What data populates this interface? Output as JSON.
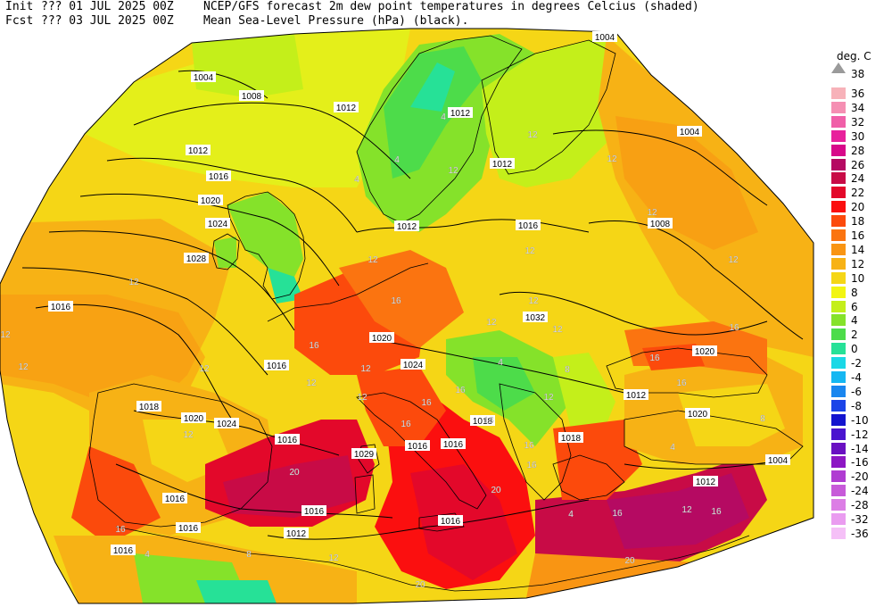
{
  "header": {
    "init_label": "Init",
    "init_date": "??? 01 JUL 2025 00Z",
    "fcst_label": "Fcst",
    "fcst_date": "??? 03 JUL 2025 00Z",
    "line1": "NCEP/GFS forecast 2m dew point temperatures in degrees Celcius (shaded)",
    "line2": "Mean Sea-Level Pressure (hPa) (black)."
  },
  "legend": {
    "title": "deg. C",
    "top_value": "38",
    "entries": [
      {
        "label": "36",
        "color": "#f7b2b9"
      },
      {
        "label": "34",
        "color": "#f58fb3"
      },
      {
        "label": "32",
        "color": "#f05fa8"
      },
      {
        "label": "30",
        "color": "#e8219c"
      },
      {
        "label": "28",
        "color": "#d8088a"
      },
      {
        "label": "26",
        "color": "#b50a62"
      },
      {
        "label": "24",
        "color": "#c80b46"
      },
      {
        "label": "22",
        "color": "#e3082a"
      },
      {
        "label": "20",
        "color": "#fb0f0f"
      },
      {
        "label": "18",
        "color": "#fc4a0c"
      },
      {
        "label": "16",
        "color": "#fb7410"
      },
      {
        "label": "14",
        "color": "#f99513"
      },
      {
        "label": "12",
        "color": "#f7b215"
      },
      {
        "label": "10",
        "color": "#f5d616"
      },
      {
        "label": "8",
        "color": "#f2f512"
      },
      {
        "label": "6",
        "color": "#c4ef1a"
      },
      {
        "label": "4",
        "color": "#85e22a"
      },
      {
        "label": "2",
        "color": "#4ddc4a"
      },
      {
        "label": "0",
        "color": "#26e197"
      },
      {
        "label": "-2",
        "color": "#1ad8e6"
      },
      {
        "label": "-4",
        "color": "#16b7f2"
      },
      {
        "label": "-6",
        "color": "#1a86ef"
      },
      {
        "label": "-8",
        "color": "#1b44e8"
      },
      {
        "label": "-10",
        "color": "#1414cf"
      },
      {
        "label": "-12",
        "color": "#4a14cf"
      },
      {
        "label": "-14",
        "color": "#6a10c2"
      },
      {
        "label": "-16",
        "color": "#8d16c4"
      },
      {
        "label": "-20",
        "color": "#b03cd2"
      },
      {
        "label": "-24",
        "color": "#c75ad9"
      },
      {
        "label": "-28",
        "color": "#dc7ee5"
      },
      {
        "label": "-32",
        "color": "#ea9cf0"
      },
      {
        "label": "-36",
        "color": "#f5c0f7"
      }
    ]
  },
  "isobar_labels": [
    "1004",
    "1004",
    "1008",
    "1012",
    "1012",
    "1012",
    "1004",
    "1016",
    "1012",
    "1020",
    "1016",
    "1008",
    "1024",
    "1012",
    "1028",
    "1016",
    "1032",
    "1020",
    "1016",
    "1024",
    "1020",
    "1012",
    "1018",
    "1020",
    "1024",
    "1018",
    "1020",
    "1016",
    "1029",
    "1018",
    "1016",
    "1016",
    "1012",
    "1004",
    "1016",
    "1016",
    "1016",
    "1016",
    "1016",
    "1012"
  ],
  "dewpoint_labels": [
    "4",
    "4",
    "12",
    "12",
    "4",
    "12",
    "12",
    "12",
    "12",
    "12",
    "12",
    "12",
    "16",
    "16",
    "12",
    "12",
    "12",
    "12",
    "16",
    "12",
    "16",
    "12",
    "16",
    "12",
    "16",
    "16",
    "16",
    "4",
    "8",
    "12",
    "16",
    "4",
    "12",
    "16",
    "20",
    "20",
    "4",
    "16",
    "8",
    "20",
    "20",
    "16",
    "16",
    "4",
    "12",
    "16",
    "12",
    "8",
    "12"
  ]
}
